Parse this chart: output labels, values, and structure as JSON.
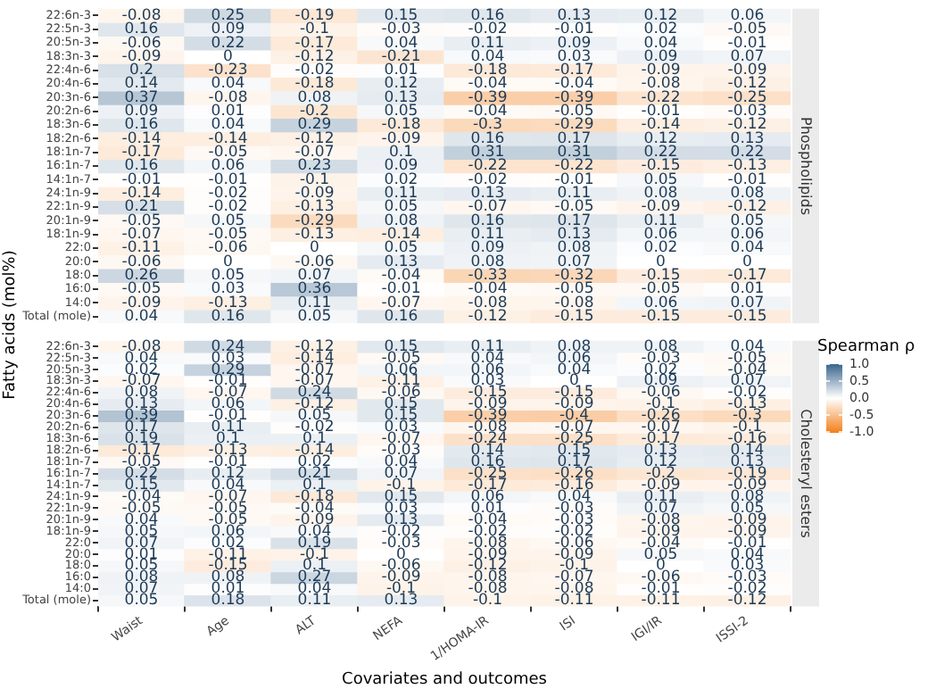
{
  "chart_data": [
    {
      "type": "heatmap",
      "y2label": "Phospholipids",
      "ylabel": "Fatty acids (mol%)",
      "tick_labels": "y",
      "data_labels": true,
      "categories": [
        null,
        null,
        null,
        null,
        null,
        null,
        null,
        null
      ],
      "y_categories": [
        "22:6n-3",
        "22:5n-3",
        "20:5n-3",
        "18:3n-3",
        "22:4n-6",
        "20:4n-6",
        "20:3n-6",
        "20:2n-6",
        "18:3n-6",
        "18:2n-6",
        "18:1n-7",
        "16:1n-7",
        "14:1n-7",
        "24:1n-9",
        "22:1n-9",
        "20:1n-9",
        "18:1n-9",
        "22:0",
        "20:0",
        "18:0",
        "16:0",
        "14:0",
        "Total (mole)"
      ],
      "cells": [
        [
          -0.08,
          0.25,
          -0.19,
          0.15,
          0.16,
          0.13,
          0.12,
          0.06
        ],
        [
          0.16,
          0.09,
          -0.1,
          -0.03,
          -0.02,
          -0.01,
          0.02,
          -0.05
        ],
        [
          -0.06,
          0.22,
          -0.17,
          0.04,
          0.11,
          0.09,
          0.04,
          -0.01
        ],
        [
          -0.09,
          0,
          -0.12,
          -0.21,
          0.04,
          0.03,
          0.09,
          0.07
        ],
        [
          0.2,
          -0.23,
          -0.02,
          0.01,
          -0.18,
          -0.17,
          -0.09,
          -0.09
        ],
        [
          0.14,
          0.04,
          -0.18,
          0.12,
          -0.04,
          -0.04,
          -0.08,
          -0.12
        ],
        [
          0.37,
          -0.08,
          0.08,
          0.13,
          -0.39,
          -0.39,
          -0.22,
          -0.25
        ],
        [
          0.09,
          0.01,
          -0.2,
          0.05,
          -0.04,
          -0.05,
          -0.01,
          -0.03
        ],
        [
          0.16,
          0.04,
          0.29,
          -0.18,
          -0.3,
          -0.29,
          -0.14,
          -0.12
        ],
        [
          -0.14,
          -0.14,
          -0.12,
          -0.09,
          0.16,
          0.17,
          0.12,
          0.13
        ],
        [
          -0.17,
          -0.05,
          -0.07,
          0.1,
          0.31,
          0.31,
          0.22,
          0.22
        ],
        [
          0.16,
          0.06,
          0.23,
          0.09,
          -0.22,
          -0.22,
          -0.15,
          -0.13
        ],
        [
          -0.01,
          -0.01,
          -0.1,
          0.02,
          -0.02,
          -0.01,
          0.05,
          -0.01
        ],
        [
          -0.14,
          -0.02,
          -0.09,
          0.11,
          0.13,
          0.11,
          0.08,
          0.08
        ],
        [
          0.21,
          -0.02,
          -0.13,
          0.05,
          -0.07,
          -0.05,
          -0.09,
          -0.12
        ],
        [
          -0.05,
          0.05,
          -0.29,
          0.08,
          0.16,
          0.17,
          0.11,
          0.05
        ],
        [
          -0.07,
          -0.05,
          -0.13,
          -0.14,
          0.11,
          0.13,
          0.06,
          0.06
        ],
        [
          -0.11,
          -0.06,
          0,
          0.05,
          0.09,
          0.08,
          0.02,
          0.04
        ],
        [
          -0.06,
          0,
          -0.06,
          0.13,
          0.08,
          0.07,
          0,
          0
        ],
        [
          0.26,
          0.05,
          0.07,
          -0.04,
          -0.33,
          -0.32,
          -0.15,
          -0.17
        ],
        [
          -0.05,
          0.03,
          0.36,
          -0.01,
          -0.04,
          -0.05,
          -0.05,
          0.01
        ],
        [
          -0.09,
          -0.13,
          0.11,
          -0.07,
          -0.08,
          -0.08,
          0.06,
          0.07
        ],
        [
          0.04,
          0.16,
          0.05,
          0.16,
          -0.12,
          -0.15,
          -0.15,
          -0.15
        ]
      ]
    },
    {
      "type": "heatmap",
      "y2label": "Cholesteryl esters",
      "xlabel": "Covariates and outcomes",
      "clabel": "Spearman ρ",
      "clim": [
        -1,
        1
      ],
      "cticks": [
        {
          "value": -1,
          "label": "-1.0"
        },
        {
          "value": -0.5,
          "label": "-0.5"
        },
        {
          "value": 0,
          "label": "0.0"
        },
        {
          "value": 0.5,
          "label": "0.5"
        },
        {
          "value": 1,
          "label": "1.0"
        }
      ],
      "data_labels": true,
      "categories": [
        "Waist",
        "Age",
        "ALT",
        "NEFA",
        "1/HOMA-IR",
        "ISI",
        "IGI/IR",
        "ISSI-2"
      ],
      "y_categories": [
        "22:6n-3",
        "22:5n-3",
        "20:5n-3",
        "18:3n-3",
        "22:4n-6",
        "20:4n-6",
        "20:3n-6",
        "20:2n-6",
        "18:3n-6",
        "18:2n-6",
        "18:1n-7",
        "16:1n-7",
        "14:1n-7",
        "24:1n-9",
        "22:1n-9",
        "20:1n-9",
        "18:1n-9",
        "22:0",
        "20:0",
        "18:0",
        "16:0",
        "14:0",
        "Total (mole)"
      ],
      "cells": [
        [
          -0.08,
          0.24,
          -0.12,
          0.15,
          0.11,
          0.08,
          0.08,
          0.04
        ],
        [
          0.04,
          0.03,
          -0.14,
          -0.05,
          0.04,
          0.06,
          -0.03,
          -0.05
        ],
        [
          0.02,
          0.29,
          -0.07,
          0.06,
          0.06,
          0.04,
          0.02,
          -0.04
        ],
        [
          -0.07,
          -0.01,
          -0.07,
          -0.11,
          0.03,
          0,
          0.09,
          0.07
        ],
        [
          0.08,
          -0.07,
          0.24,
          -0.06,
          -0.15,
          -0.15,
          -0.06,
          -0.02
        ],
        [
          0.13,
          0.06,
          -0.12,
          0.15,
          -0.09,
          -0.09,
          -0.1,
          -0.13
        ],
        [
          0.39,
          -0.01,
          0.05,
          0.15,
          -0.39,
          -0.4,
          -0.26,
          -0.3
        ],
        [
          0.17,
          0.11,
          -0.02,
          0.03,
          -0.08,
          -0.07,
          -0.07,
          -0.1
        ],
        [
          0.19,
          0.1,
          0.1,
          -0.07,
          -0.24,
          -0.25,
          -0.17,
          -0.16
        ],
        [
          -0.17,
          -0.13,
          -0.14,
          -0.03,
          0.14,
          0.15,
          0.13,
          0.14
        ],
        [
          -0.05,
          -0.01,
          0.02,
          0.04,
          0.16,
          0.17,
          0.12,
          0.13
        ],
        [
          0.22,
          0.12,
          0.21,
          0.07,
          -0.25,
          -0.26,
          -0.2,
          -0.19
        ],
        [
          0.15,
          0.04,
          0.1,
          -0.1,
          -0.17,
          -0.16,
          -0.09,
          -0.09
        ],
        [
          -0.04,
          -0.07,
          -0.18,
          0.15,
          0.06,
          0.04,
          0.11,
          0.08
        ],
        [
          -0.05,
          -0.05,
          -0.04,
          0.03,
          0.01,
          -0.03,
          0.07,
          0.05
        ],
        [
          0.04,
          -0.05,
          -0.09,
          0.13,
          -0.04,
          -0.03,
          -0.08,
          -0.09
        ],
        [
          0.05,
          0.06,
          0.04,
          -0.02,
          -0.02,
          -0.02,
          -0.09,
          -0.09
        ],
        [
          0.07,
          0.02,
          0.19,
          -0.03,
          -0.08,
          -0.06,
          -0.04,
          -0.01
        ],
        [
          0.01,
          -0.11,
          -0.1,
          0,
          -0.09,
          -0.09,
          0.05,
          0.04
        ],
        [
          0.05,
          -0.15,
          0.1,
          -0.06,
          -0.12,
          -0.1,
          0,
          0.03
        ],
        [
          0.08,
          0.08,
          0.27,
          -0.09,
          -0.08,
          -0.07,
          -0.06,
          -0.03
        ],
        [
          0.07,
          0.01,
          0.04,
          -0.1,
          -0.08,
          -0.08,
          -0.01,
          -0.02
        ],
        [
          0.05,
          0.18,
          0.11,
          0.13,
          -0.1,
          -0.11,
          -0.11,
          -0.12
        ]
      ]
    }
  ]
}
